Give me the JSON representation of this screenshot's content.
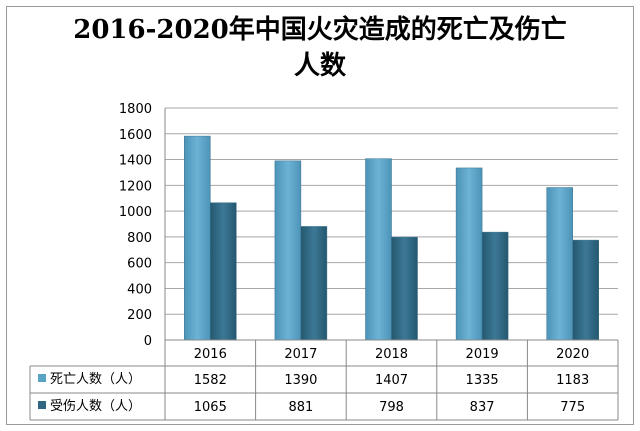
{
  "chart_data": {
    "type": "bar",
    "title_line1": "2016-2020年中国火灾造成的死亡及伤亡",
    "title_line2": "人数",
    "categories": [
      "2016",
      "2017",
      "2018",
      "2019",
      "2020"
    ],
    "series": [
      {
        "name": "死亡人数（人）",
        "values": [
          1582,
          1390,
          1407,
          1335,
          1183
        ],
        "color": "#5aa2c6"
      },
      {
        "name": "受伤人数（人）",
        "values": [
          1065,
          881,
          798,
          837,
          775
        ],
        "color": "#2f6783"
      }
    ],
    "ylim": [
      0,
      1800
    ],
    "yticks": [
      "0",
      "200",
      "400",
      "600",
      "800",
      "1000",
      "1200",
      "1400",
      "1600",
      "1800"
    ],
    "grid": true,
    "legend": "data-table-left"
  }
}
